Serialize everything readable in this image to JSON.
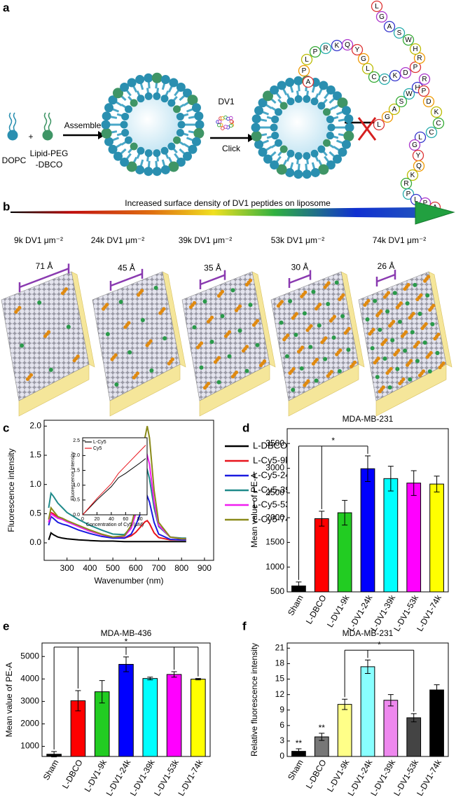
{
  "panel_labels": [
    "a",
    "b",
    "c",
    "d",
    "e",
    "f"
  ],
  "panel_a": {
    "dopc": "DOPC",
    "plus": "+",
    "lipid_peg": [
      "Lipid-PEG",
      "-DBCO"
    ],
    "assemble": "Assemble",
    "dv1": "DV1",
    "click": "Click",
    "peptide_top": [
      "A",
      "P",
      "L",
      "P",
      "R",
      "K",
      "Q",
      "Y",
      "G",
      "L",
      "C",
      "C",
      "K",
      "D",
      "P",
      "R",
      "H",
      "W",
      "S",
      "A",
      "G",
      "L"
    ],
    "peptide_side": [
      "L",
      "G",
      "A",
      "S",
      "W",
      "H",
      "R",
      "P",
      "D",
      "K",
      "C",
      "C",
      "L",
      "G",
      "Y",
      "Q",
      "K",
      "R",
      "P",
      "L",
      "P",
      "A"
    ]
  },
  "panel_b": {
    "gradient_label": "Increased surface density of DV1 peptides on liposome",
    "densities": [
      "9k DV1 μm⁻²",
      "24k DV1 μm⁻²",
      "39k DV1 μm⁻²",
      "53k DV1 μm⁻²",
      "74k DV1 μm⁻²"
    ],
    "spacings": [
      "71 Å",
      "45 Å",
      "35 Å",
      "30 Å",
      "26 Å"
    ]
  },
  "chart_data": [
    {
      "type": "line",
      "x_label": "Wavenumber (nm)",
      "y_label": "Fluorescence intensity",
      "x": [
        220,
        230,
        240,
        260,
        280,
        300,
        350,
        400,
        450,
        500,
        550,
        580,
        600,
        620,
        640,
        650,
        660,
        680,
        700,
        750,
        800,
        820
      ],
      "xlim": [
        200,
        940
      ],
      "xticks": [
        300,
        400,
        500,
        600,
        700,
        800,
        900
      ],
      "ylim": [
        -0.3,
        2.1
      ],
      "yticks": [
        {
          "value": 0,
          "label": "0.0"
        },
        0.5,
        {
          "value": 1,
          "label": "1.0"
        },
        1.5,
        {
          "value": 2,
          "label": "2.0"
        }
      ],
      "series": [
        {
          "name": "L-DBCO",
          "color": "#000000",
          "values": [
            0.05,
            0.17,
            0.14,
            0.1,
            0.08,
            0.07,
            0.05,
            0.04,
            0.03,
            0.03,
            0.02,
            0.02,
            0.02,
            0.02,
            0.02,
            0.02,
            0.02,
            0.02,
            0.02,
            0.02,
            0.02,
            0.02
          ]
        },
        {
          "name": "L-Cy5-9k",
          "color": "#e8141c",
          "values": [
            0.35,
            0.52,
            0.5,
            0.43,
            0.4,
            0.37,
            0.28,
            0.2,
            0.14,
            0.1,
            0.08,
            0.12,
            0.18,
            0.27,
            0.36,
            0.38,
            0.33,
            0.17,
            0.09,
            0.05,
            0.05,
            0.05
          ]
        },
        {
          "name": "L-Cy5-24k",
          "color": "#1a1ae0",
          "values": [
            0.3,
            0.45,
            0.42,
            0.35,
            0.32,
            0.3,
            0.22,
            0.16,
            0.11,
            0.08,
            0.08,
            0.15,
            0.3,
            0.5,
            0.75,
            0.8,
            0.7,
            0.35,
            0.15,
            0.06,
            0.05,
            0.05
          ]
        },
        {
          "name": "L-Cy5-39k",
          "color": "#1f8a8a",
          "values": [
            0.6,
            0.85,
            0.8,
            0.68,
            0.6,
            0.52,
            0.4,
            0.3,
            0.22,
            0.15,
            0.14,
            0.27,
            0.5,
            0.8,
            1.2,
            1.25,
            1.1,
            0.6,
            0.28,
            0.1,
            0.08,
            0.08
          ]
        },
        {
          "name": "L-Cy5-53k",
          "color": "#f01ef0",
          "values": [
            0.35,
            0.5,
            0.47,
            0.42,
            0.4,
            0.36,
            0.28,
            0.2,
            0.14,
            0.1,
            0.11,
            0.25,
            0.5,
            0.9,
            1.4,
            1.5,
            1.35,
            0.7,
            0.3,
            0.1,
            0.07,
            0.07
          ]
        },
        {
          "name": "L-Cy5-74k",
          "color": "#8a8a1a",
          "values": [
            0.4,
            0.6,
            0.55,
            0.45,
            0.42,
            0.38,
            0.3,
            0.22,
            0.15,
            0.1,
            0.12,
            0.3,
            0.6,
            1.1,
            1.8,
            2.0,
            1.8,
            0.9,
            0.35,
            0.1,
            0.07,
            0.07
          ]
        }
      ]
    },
    {
      "type": "line",
      "x_label": "Concentration of Cy5 (μM)",
      "y_label": "Fluorescence intensity",
      "x": [
        0,
        20,
        40,
        50,
        60,
        80,
        88
      ],
      "xlim": [
        0,
        90
      ],
      "xticks": [
        0,
        20,
        40,
        60,
        80
      ],
      "ylim": [
        0,
        2.6
      ],
      "yticks": [
        {
          "value": 0,
          "label": "0.0"
        },
        0.5,
        {
          "value": 1,
          "label": "1.0"
        },
        1.5,
        {
          "value": 2,
          "label": "2.0"
        },
        2.5
      ],
      "series": [
        {
          "name": "L-Cy5",
          "color": "#000000",
          "values": [
            0,
            0.5,
            0.95,
            1.25,
            1.4,
            1.75,
            1.9
          ]
        },
        {
          "name": "Cy5",
          "color": "#e8141c",
          "values": [
            0,
            0.55,
            1.05,
            1.4,
            1.65,
            2.15,
            2.35
          ]
        }
      ]
    },
    {
      "type": "bar",
      "title": "MDA-MB-231",
      "y_label": "Mean value of PE-A",
      "categories": [
        "Sham",
        "L-DBCO",
        "L-DV1-9k",
        "L-DV1-24k",
        "L-DV1-39k",
        "L-DV1-53k",
        "L-DV1-74k"
      ],
      "values": [
        620,
        1980,
        2100,
        2990,
        2790,
        2700,
        2680
      ],
      "errors": [
        80,
        150,
        250,
        260,
        250,
        250,
        160
      ],
      "colors": [
        "#000000",
        "#ff0000",
        "#22cc22",
        "#0000ff",
        "#00ffff",
        "#ff00ff",
        "#ffff00"
      ],
      "ylim": [
        500,
        3800
      ],
      "yticks": [
        500,
        1000,
        1500,
        2000,
        2500,
        3000,
        3500
      ],
      "brackets": [
        {
          "text": "*",
          "categories": [
            "Sham",
            "L-DBCO",
            "L-DV1-24k"
          ]
        }
      ]
    },
    {
      "type": "bar",
      "title": "MDA-MB-436",
      "y_label": "Mean value of PE-A",
      "categories": [
        "Sham",
        "L-DBCO",
        "L-DV1-9k",
        "L-DV1-24k",
        "L-DV1-39k",
        "L-DV1-53k",
        "L-DV1-74k"
      ],
      "values": [
        650,
        3030,
        3430,
        4650,
        4020,
        4200,
        3990
      ],
      "errors": [
        120,
        450,
        500,
        330,
        60,
        120,
        30
      ],
      "colors": [
        "#000000",
        "#ff0000",
        "#22cc22",
        "#0000ff",
        "#00ffff",
        "#ff00ff",
        "#ffff00"
      ],
      "ylim": [
        550,
        5600
      ],
      "yticks": [
        1000,
        2000,
        3000,
        4000,
        5000
      ],
      "brackets": [
        {
          "text": "*",
          "categories": [
            "Sham",
            "L-DBCO",
            "L-DV1-24k",
            "L-DV1-53k",
            "L-DV1-74k"
          ]
        }
      ]
    },
    {
      "type": "bar",
      "title": "MDA-MB-231",
      "y_label": "Relative fluorescence intensity",
      "categories": [
        "Sham",
        "L-DBCO",
        "L-DV1-9k",
        "L-DV1-24k",
        "L-DV1-39k",
        "L-DV1-53k",
        "L-DV1-74k"
      ],
      "values": [
        1.0,
        3.8,
        10.1,
        17.4,
        10.9,
        7.5,
        12.9
      ],
      "errors": [
        0.5,
        0.7,
        1.0,
        1.3,
        1.1,
        0.8,
        1.0
      ],
      "colors": [
        "#000000",
        "#777777",
        "#ffff88",
        "#88ffff",
        "#ee88ee",
        "#444444",
        "#000000"
      ],
      "ylim": [
        0,
        22
      ],
      "yticks": [
        0,
        3,
        6,
        9,
        12,
        15,
        18,
        21
      ],
      "brackets": [
        {
          "text": "*",
          "categories": [
            "L-DV1-9k",
            "L-DV1-24k",
            "L-DV1-53k"
          ]
        }
      ],
      "annotations": [
        {
          "text": "**",
          "category": "Sham"
        },
        {
          "text": "**",
          "category": "L-DBCO"
        }
      ]
    }
  ]
}
